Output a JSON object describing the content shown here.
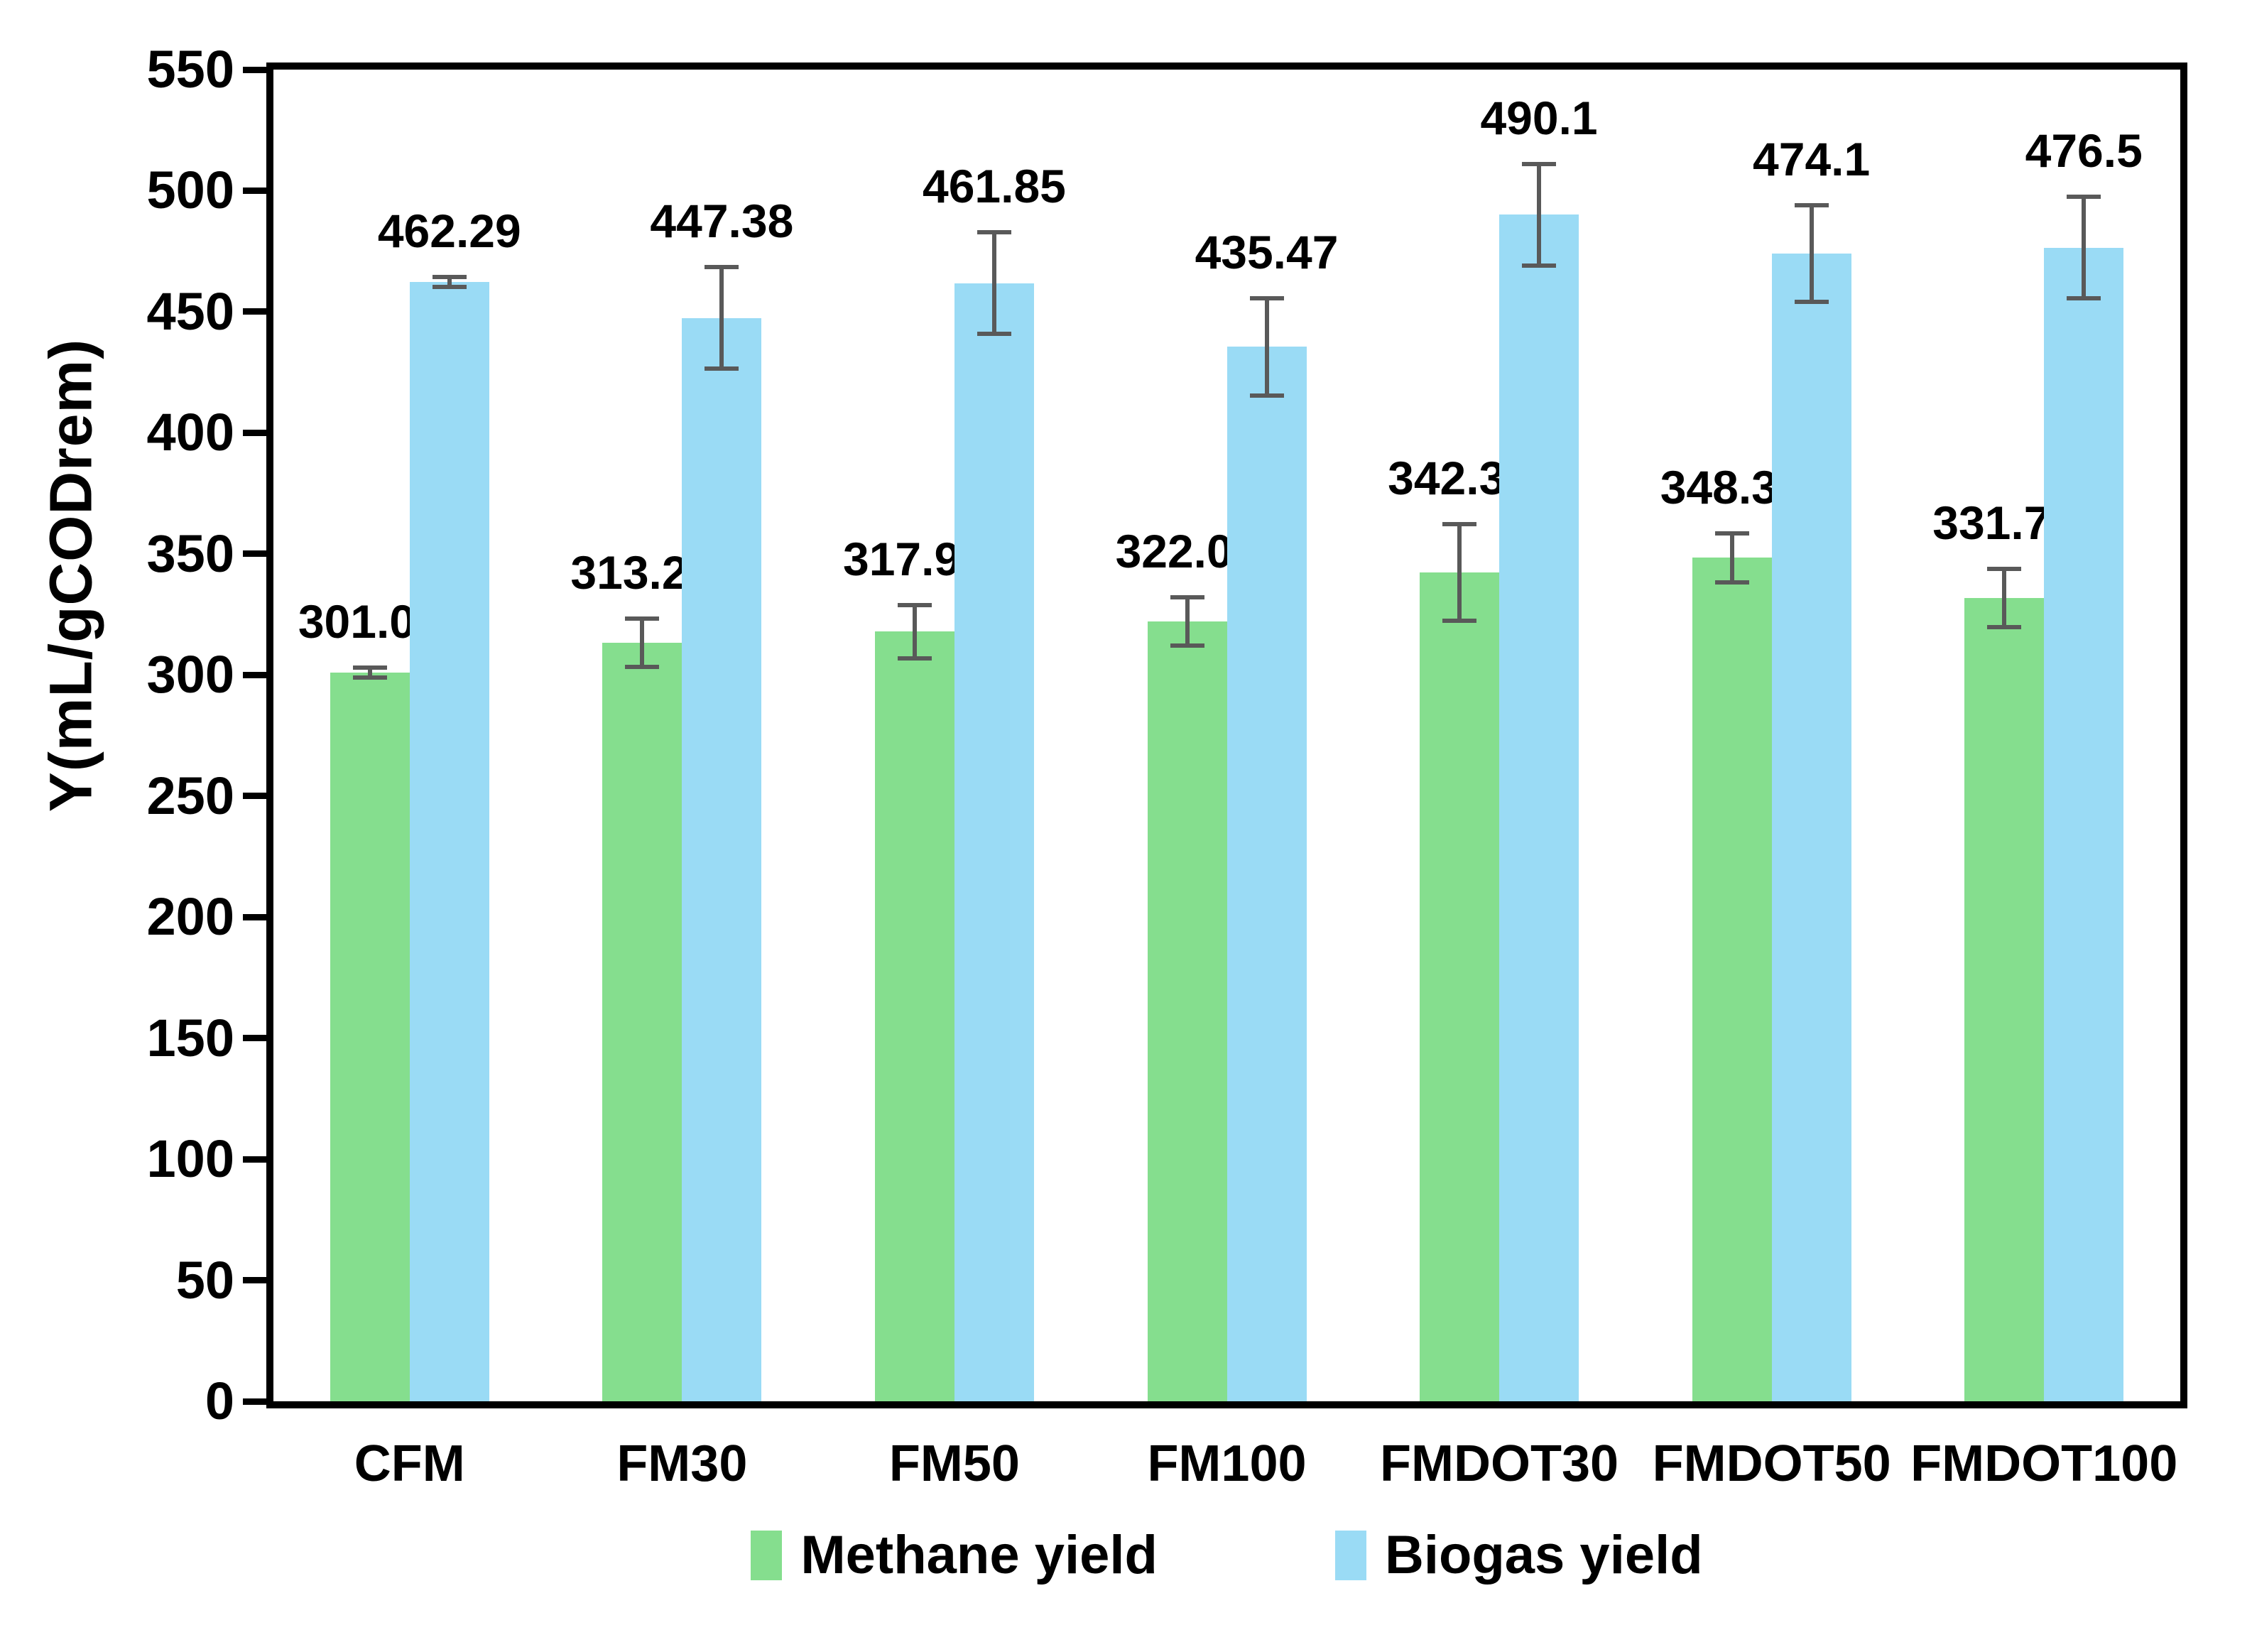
{
  "chart_data": {
    "type": "bar",
    "title": "",
    "ylabel": "Y(mL/gCODrem)",
    "xlabel": "",
    "ylim": [
      0,
      550
    ],
    "ytick_step": 50,
    "yticks": [
      0,
      50,
      100,
      150,
      200,
      250,
      300,
      350,
      400,
      450,
      500,
      550
    ],
    "grid": false,
    "legend_position": "bottom",
    "axis_color": "#000000",
    "error_bar_color": "#595959",
    "categories": [
      "CFM",
      "FM30",
      "FM50",
      "FM100",
      "FMDOT30",
      "FMDOT50",
      "FMDOT100"
    ],
    "series": [
      {
        "name": "Methane yield",
        "color": "#85DE8E",
        "values": [
          301.02,
          313.27,
          317.91,
          322.09,
          342.33,
          348.36,
          331.76
        ],
        "value_labels": [
          "301.02",
          "313.27",
          "317.91",
          "322.09",
          "342.33",
          "348.36",
          "331.76"
        ],
        "errors": [
          2,
          10,
          11,
          10,
          20,
          10,
          12
        ]
      },
      {
        "name": "Biogas yield",
        "color": "#9ADBF5",
        "values": [
          462.29,
          447.38,
          461.85,
          435.47,
          490.1,
          474.1,
          476.5
        ],
        "value_labels": [
          "462.29",
          "447.38",
          "461.85",
          "435.47",
          "490.1",
          "474.1",
          "476.5"
        ],
        "errors": [
          2,
          21,
          21,
          20,
          21,
          20,
          21
        ]
      }
    ]
  }
}
